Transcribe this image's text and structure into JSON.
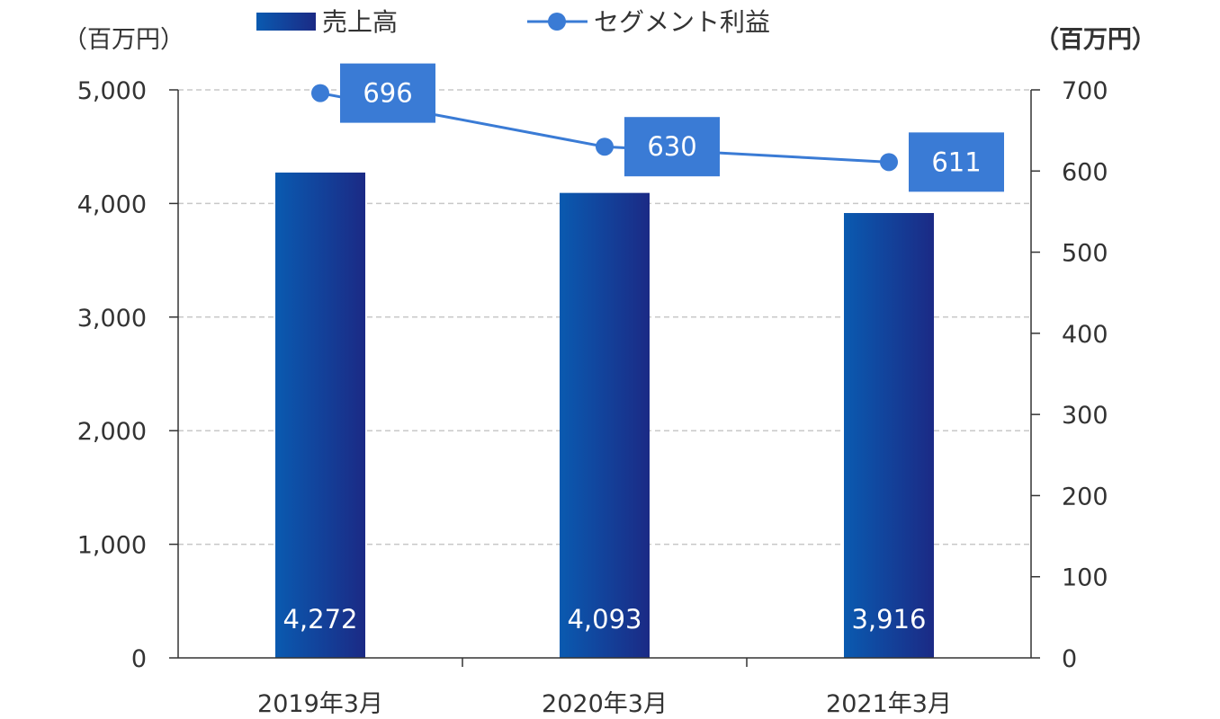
{
  "chart_data": {
    "type": "bar+line",
    "categories": [
      "2019年3月",
      "2020年3月",
      "2021年3月"
    ],
    "series": [
      {
        "name": "売上高",
        "type": "bar",
        "axis": "left",
        "values": [
          4272,
          4093,
          3916
        ],
        "labels": [
          "4,272",
          "4,093",
          "3,916"
        ],
        "color": "#1a3a9a"
      },
      {
        "name": "セグメント利益",
        "type": "line",
        "axis": "right",
        "values": [
          696,
          630,
          611
        ],
        "labels": [
          "696",
          "630",
          "611"
        ],
        "color": "#3a7bd5"
      }
    ],
    "y_left": {
      "unit": "（百万円）",
      "min": 0,
      "max": 5000,
      "step": 1000,
      "ticks": [
        "0",
        "1,000",
        "2,000",
        "3,000",
        "4,000",
        "5,000"
      ]
    },
    "y_right": {
      "unit": "（百万円）",
      "min": 0,
      "max": 700,
      "step": 100,
      "ticks": [
        "0",
        "100",
        "200",
        "300",
        "400",
        "500",
        "600",
        "700"
      ]
    },
    "grid": true,
    "legend_position": "top"
  }
}
